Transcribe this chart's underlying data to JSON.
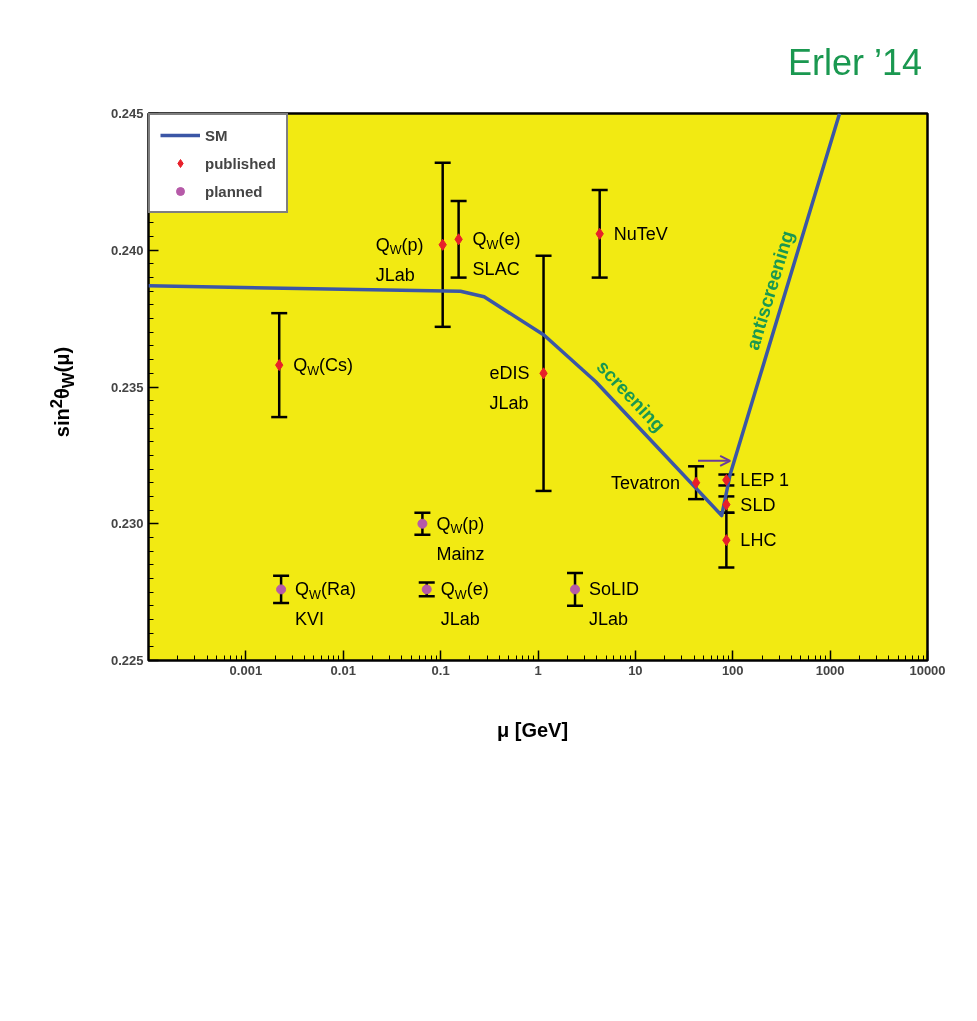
{
  "chart_data": {
    "type": "scatter",
    "xlabel": "μ [GeV]",
    "ylabel": "sin$^{2}$θ$_{W}$(μ)",
    "log": "x",
    "xlim": [
      0.0001,
      10000
    ],
    "xticks": [
      0.001,
      0.01,
      0.1,
      1,
      10,
      100,
      1000,
      10000
    ],
    "ylim": [
      0.225,
      0.245
    ],
    "yticks": [
      0.225,
      {
        "value": 0.23,
        "label": "0.230"
      },
      0.235,
      {
        "value": 0.24,
        "label": "0.240"
      },
      0.245
    ],
    "legend": "top left",
    "series": [
      {
        "name": "SM",
        "type": "line",
        "color": "#3b56a6",
        "x": [
          0.0001,
          0.16,
          0.28,
          1.15,
          3.9,
          77,
          94,
          1250
        ],
        "values": [
          0.2387,
          0.2385,
          0.2383,
          0.2369,
          0.2352,
          0.2303,
          0.2318,
          0.245
        ]
      },
      {
        "name": "published",
        "marker": "diamond",
        "color": "#e8202a",
        "x": [
          0.0022,
          0.105,
          0.153,
          1.14,
          4.3,
          42,
          86,
          86,
          86
        ],
        "values": [
          0.2358,
          0.2402,
          0.2404,
          0.2355,
          0.2406,
          0.2315,
          0.2316,
          0.2307,
          0.2294
        ],
        "errors": [
          0.0019,
          0.003,
          0.0014,
          0.0043,
          0.0016,
          0.0006,
          0.0002,
          0.0003,
          0.001
        ]
      },
      {
        "name": "planned",
        "marker": "circle",
        "color": "#b65aa8",
        "x": [
          0.0023,
          0.065,
          0.072,
          2.4
        ],
        "values": [
          0.2276,
          0.23,
          0.2276,
          0.2276
        ],
        "errors": [
          0.0005,
          0.0004,
          0.00025,
          0.0006
        ]
      }
    ],
    "annotations": [
      "Erler ’14",
      {
        "text": "Q$_{W}$(Cs)",
        "x": 0.0022,
        "y": 0.2358
      },
      {
        "text": "Q$_{W}$(p)\nJLab",
        "x": 0.105,
        "y": 0.2402
      },
      {
        "text": "Q$_{W}$(e)\nSLAC",
        "x": 0.153,
        "y": 0.2404
      },
      {
        "text": "eDIS\nJLab",
        "x": 1.14,
        "y": 0.2355
      },
      {
        "text": "NuTeV",
        "x": 4.3,
        "y": 0.2406
      },
      {
        "text": "Tevatron",
        "x": 42,
        "y": 0.2315
      },
      {
        "text": "LEP 1",
        "x": 86,
        "y": 0.2316
      },
      {
        "text": "SLD",
        "x": 86,
        "y": 0.2307
      },
      {
        "text": "LHC",
        "x": 86,
        "y": 0.2294
      },
      {
        "text": "Q$_{W}$(p)\nMainz",
        "x": 0.065,
        "y": 0.23
      },
      {
        "text": "Q$_{W}$(Ra)\nKVI",
        "x": 0.0023,
        "y": 0.2276
      },
      {
        "text": "Q$_{W}$(e)\nJLab",
        "x": 0.072,
        "y": 0.2276
      },
      {
        "text": "SoLID\nJLab",
        "x": 2.4,
        "y": 0.2276
      },
      {
        "text": "screening",
        "x": 6.7,
        "y": 0.2343
      },
      {
        "text": "antiscreening",
        "x": 341,
        "y": 0.2383
      }
    ]
  }
}
